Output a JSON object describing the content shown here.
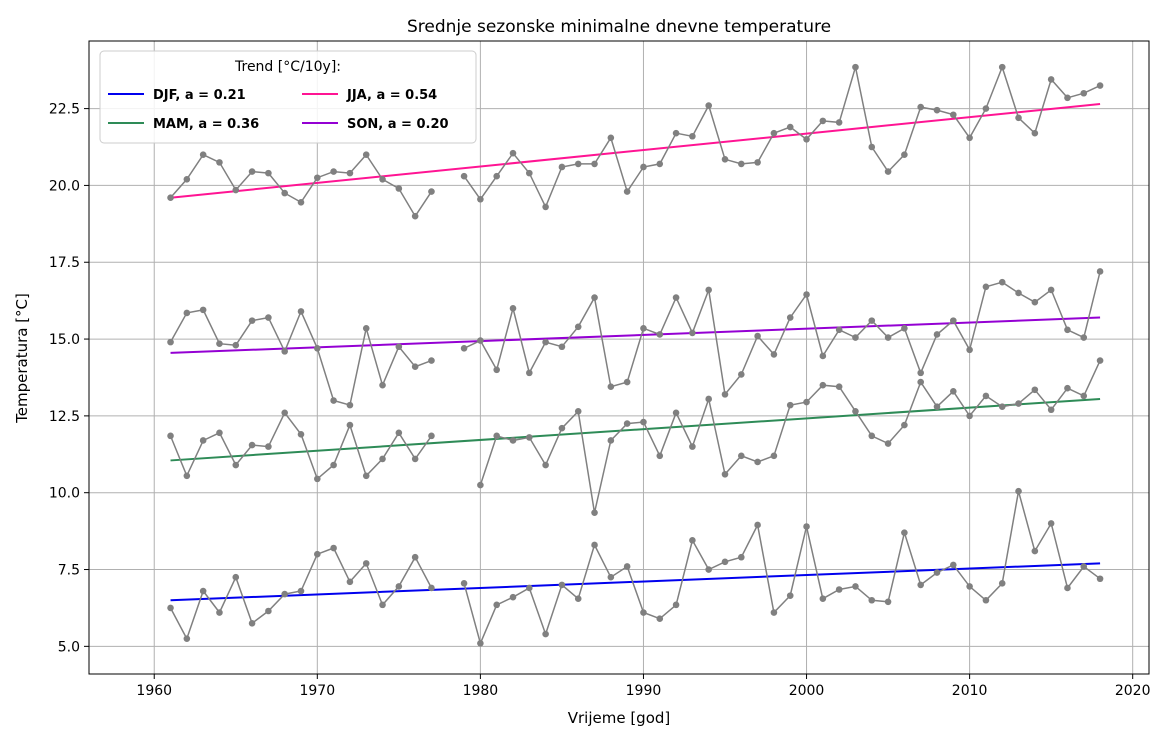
{
  "chart_data": {
    "type": "line",
    "title": "Srednje sezonske minimalne dnevne temperature",
    "xlabel": "Vrijeme [god]",
    "ylabel": "Temperatura [°C]",
    "xlim": [
      1956,
      2021
    ],
    "ylim": [
      4.1,
      24.7
    ],
    "xticks": [
      1960,
      1970,
      1980,
      1990,
      2000,
      2010,
      2020
    ],
    "xtick_labels": [
      "1960",
      "1970",
      "1980",
      "1990",
      "2000",
      "2010",
      "2020"
    ],
    "yticks": [
      5.0,
      7.5,
      10.0,
      12.5,
      15.0,
      17.5,
      20.0,
      22.5
    ],
    "ytick_labels": [
      "5.0",
      "7.5",
      "10.0",
      "12.5",
      "15.0",
      "17.5",
      "20.0",
      "22.5"
    ],
    "grid": true,
    "legend": {
      "title": "Trend [°C/10y]:",
      "placement": "top-left",
      "columns": 2,
      "entries": [
        {
          "label": "DJF, a = 0.21",
          "color": "#0000ee"
        },
        {
          "label": "MAM, a = 0.36",
          "color": "#2e8b57"
        },
        {
          "label": "JJA, a = 0.54",
          "color": "#ff1493"
        },
        {
          "label": "SON, a = 0.20",
          "color": "#9400d3"
        }
      ]
    },
    "data_color": "#808080",
    "series": [
      {
        "name": "JJA",
        "segments": [
          {
            "x": [
              1961,
              1962,
              1963,
              1964,
              1965,
              1966,
              1967,
              1968,
              1969,
              1970,
              1971,
              1972,
              1973,
              1974,
              1975,
              1976,
              1977
            ],
            "y": [
              19.6,
              20.2,
              21.0,
              20.75,
              19.85,
              20.45,
              20.4,
              19.75,
              19.45,
              20.25,
              20.45,
              20.4,
              21.0,
              20.2,
              19.9,
              19.0,
              19.8
            ]
          },
          {
            "x": [
              1979,
              1980,
              1981,
              1982,
              1983,
              1984,
              1985,
              1986,
              1987,
              1988,
              1989,
              1990,
              1991,
              1992,
              1993,
              1994,
              1995,
              1996,
              1997,
              1998,
              1999,
              2000,
              2001,
              2002,
              2003,
              2004,
              2005,
              2006,
              2007,
              2008,
              2009,
              2010,
              2011,
              2012,
              2013,
              2014,
              2015,
              2016,
              2017,
              2018
            ],
            "y": [
              20.3,
              19.55,
              20.3,
              21.05,
              20.4,
              19.3,
              20.6,
              20.7,
              20.7,
              21.55,
              19.8,
              20.6,
              20.7,
              21.7,
              21.6,
              22.6,
              20.85,
              20.7,
              20.75,
              21.7,
              21.9,
              21.5,
              22.1,
              22.05,
              23.85,
              21.25,
              20.45,
              21.0,
              22.55,
              22.45,
              22.3,
              21.55,
              22.5,
              23.85,
              22.2,
              21.7,
              23.45,
              22.85,
              23.0,
              23.25
            ]
          }
        ],
        "trend": {
          "color": "#ff1493",
          "x": [
            1961,
            2018
          ],
          "y": [
            19.6,
            22.65
          ]
        }
      },
      {
        "name": "SON",
        "segments": [
          {
            "x": [
              1961,
              1962,
              1963,
              1964,
              1965,
              1966,
              1967,
              1968,
              1969,
              1970,
              1971,
              1972,
              1973,
              1974,
              1975,
              1976,
              1977
            ],
            "y": [
              14.9,
              15.85,
              15.95,
              14.85,
              14.8,
              15.6,
              15.7,
              14.6,
              15.9,
              14.7,
              13.0,
              12.85,
              15.35,
              13.5,
              14.75,
              14.1,
              14.3
            ]
          },
          {
            "x": [
              1979,
              1980,
              1981,
              1982,
              1983,
              1984,
              1985,
              1986,
              1987,
              1988,
              1989,
              1990,
              1991,
              1992,
              1993,
              1994,
              1995,
              1996,
              1997,
              1998,
              1999,
              2000,
              2001,
              2002,
              2003,
              2004,
              2005,
              2006,
              2007,
              2008,
              2009,
              2010,
              2011,
              2012,
              2013,
              2014,
              2015,
              2016,
              2017,
              2018
            ],
            "y": [
              14.7,
              14.95,
              14.0,
              16.0,
              13.9,
              14.9,
              14.75,
              15.4,
              16.35,
              13.45,
              13.6,
              15.35,
              15.15,
              16.35,
              15.2,
              16.6,
              13.2,
              13.85,
              15.1,
              14.5,
              15.7,
              16.45,
              14.45,
              15.3,
              15.05,
              15.6,
              15.05,
              15.35,
              13.9,
              15.15,
              15.6,
              14.65,
              16.7,
              16.85,
              16.5,
              16.2,
              16.6,
              15.3,
              15.05,
              17.2
            ]
          }
        ],
        "trend": {
          "color": "#9400d3",
          "x": [
            1961,
            2018
          ],
          "y": [
            14.55,
            15.7
          ]
        }
      },
      {
        "name": "MAM",
        "segments": [
          {
            "x": [
              1961,
              1962,
              1963,
              1964,
              1965,
              1966,
              1967,
              1968,
              1969,
              1970,
              1971,
              1972,
              1973,
              1974,
              1975,
              1976,
              1977
            ],
            "y": [
              11.85,
              10.55,
              11.7,
              11.95,
              10.9,
              11.55,
              11.5,
              12.6,
              11.9,
              10.45,
              10.9,
              12.2,
              10.55,
              11.1,
              11.95,
              11.1,
              11.85
            ]
          },
          {
            "x": [
              1980,
              1981,
              1982,
              1983,
              1984,
              1985,
              1986,
              1987,
              1988,
              1989,
              1990,
              1991,
              1992,
              1993,
              1994,
              1995,
              1996,
              1997,
              1998,
              1999,
              2000,
              2001,
              2002,
              2003,
              2004,
              2005,
              2006,
              2007,
              2008,
              2009,
              2010,
              2011,
              2012,
              2013,
              2014,
              2015,
              2016,
              2017,
              2018
            ],
            "y": [
              10.25,
              11.85,
              11.7,
              11.8,
              10.9,
              12.1,
              12.65,
              9.35,
              11.7,
              12.25,
              12.3,
              11.2,
              12.6,
              11.5,
              13.05,
              10.6,
              11.2,
              11.0,
              11.2,
              12.85,
              12.95,
              13.5,
              13.45,
              12.65,
              11.85,
              11.6,
              12.2,
              13.6,
              12.8,
              13.3,
              12.5,
              13.15,
              12.8,
              12.9,
              13.35,
              12.7,
              13.4,
              13.15,
              14.3
            ]
          }
        ],
        "trend": {
          "color": "#2e8b57",
          "x": [
            1961,
            2018
          ],
          "y": [
            11.05,
            13.05
          ]
        }
      },
      {
        "name": "DJF",
        "segments": [
          {
            "x": [
              1961,
              1962,
              1963,
              1964,
              1965,
              1966,
              1967,
              1968,
              1969,
              1970,
              1971,
              1972,
              1973,
              1974,
              1975,
              1976,
              1977
            ],
            "y": [
              6.25,
              5.25,
              6.8,
              6.1,
              7.25,
              5.75,
              6.15,
              6.7,
              6.8,
              8.0,
              8.2,
              7.1,
              7.7,
              6.35,
              6.95,
              7.9,
              6.9
            ]
          },
          {
            "x": [
              1979,
              1980,
              1981,
              1982,
              1983,
              1984,
              1985,
              1986,
              1987,
              1988,
              1989,
              1990,
              1991,
              1992,
              1993,
              1994,
              1995,
              1996,
              1997,
              1998,
              1999,
              2000,
              2001,
              2002,
              2003,
              2004,
              2005,
              2006,
              2007,
              2008,
              2009,
              2010,
              2011,
              2012,
              2013,
              2014,
              2015,
              2016,
              2017,
              2018
            ],
            "y": [
              7.05,
              5.1,
              6.35,
              6.6,
              6.9,
              5.4,
              7.0,
              6.55,
              8.3,
              7.25,
              7.6,
              6.1,
              5.9,
              6.35,
              8.45,
              7.5,
              7.75,
              7.9,
              8.95,
              6.1,
              6.65,
              8.9,
              6.55,
              6.85,
              6.95,
              6.5,
              6.45,
              8.7,
              7.0,
              7.4,
              7.65,
              6.95,
              6.5,
              7.05,
              10.05,
              8.1,
              9.0,
              6.9,
              7.6,
              7.2
            ]
          }
        ],
        "trend": {
          "color": "#0000ee",
          "x": [
            1961,
            2018
          ],
          "y": [
            6.5,
            7.7
          ]
        }
      }
    ]
  }
}
